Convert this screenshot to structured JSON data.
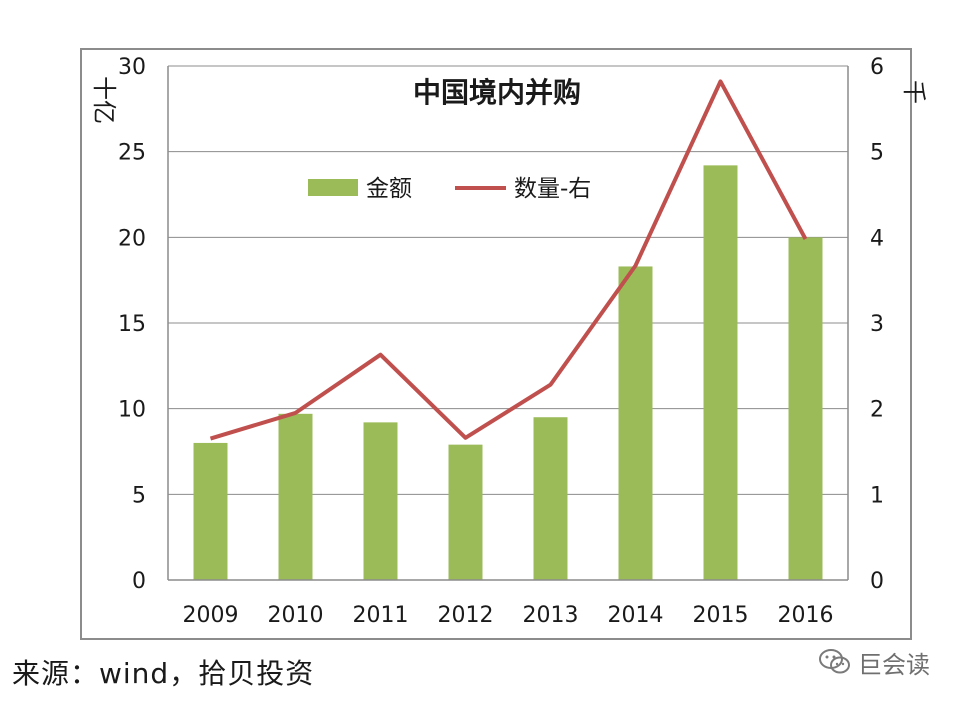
{
  "chart_data": {
    "type": "bar+line",
    "title": "中国境内并购",
    "categories": [
      "2009",
      "2010",
      "2011",
      "2012",
      "2013",
      "2014",
      "2015",
      "2016"
    ],
    "series": [
      {
        "name": "金额",
        "type": "bar",
        "axis": "left",
        "values": [
          8.0,
          9.7,
          9.2,
          7.9,
          9.5,
          18.3,
          24.2,
          20.0
        ],
        "color": "#9bbb59"
      },
      {
        "name": "数量-右",
        "type": "line",
        "axis": "right",
        "values": [
          1.65,
          1.95,
          2.63,
          1.66,
          2.28,
          3.67,
          5.82,
          3.98
        ],
        "color": "#c0504d"
      }
    ],
    "y_left": {
      "label": "十亿",
      "min": 0,
      "max": 30,
      "ticks": [
        "0",
        "5",
        "10",
        "15",
        "20",
        "25",
        "30"
      ]
    },
    "y_right": {
      "label": "千",
      "min": 0,
      "max": 6,
      "ticks": [
        "0",
        "1",
        "2",
        "3",
        "4",
        "5",
        "6"
      ]
    },
    "grid": true,
    "legend_position": "top"
  },
  "footer": {
    "source": "来源：wind，拾贝投资",
    "watermark": "巨会读"
  },
  "colors": {
    "grid": "#8c8c8c",
    "frame": "#8c8c8c",
    "text": "#1a1a1a"
  }
}
